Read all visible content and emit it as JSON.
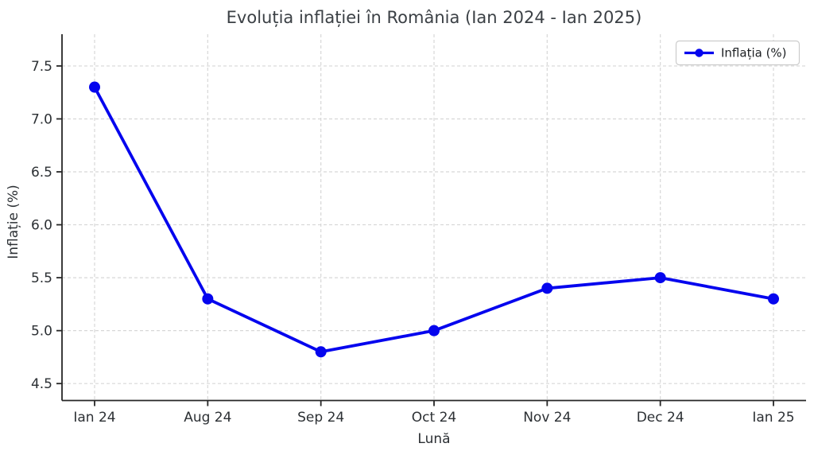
{
  "figure": {
    "background": "#ffffff"
  },
  "chart_data": {
    "type": "line",
    "title": "Evoluția inflației în România (Ian 2024 - Ian 2025)",
    "xlabel": "Lună",
    "ylabel": "Inflație (%)",
    "categories": [
      "Ian 24",
      "Aug 24",
      "Sep 24",
      "Oct 24",
      "Nov 24",
      "Dec 24",
      "Ian 25"
    ],
    "series": [
      {
        "name": "Inflația (%)",
        "values": [
          7.3,
          5.3,
          4.8,
          5.0,
          5.4,
          5.5,
          5.3
        ],
        "color": "#0505ee",
        "marker": "circle",
        "line_width": 3.8,
        "marker_radius": 7
      }
    ],
    "yticks": [
      4.5,
      5.0,
      5.5,
      6.0,
      6.5,
      7.0,
      7.5
    ],
    "ylim": [
      4.34,
      7.8
    ],
    "grid": {
      "visible": true,
      "line_style": "dashed",
      "color": "#d7d7d7"
    },
    "legend": {
      "visible": true,
      "position": "upper-right",
      "entries": [
        "Inflația (%)"
      ]
    },
    "colors": {
      "text": "#2c3034",
      "title": "#3b4045",
      "spine": "#262626"
    }
  }
}
